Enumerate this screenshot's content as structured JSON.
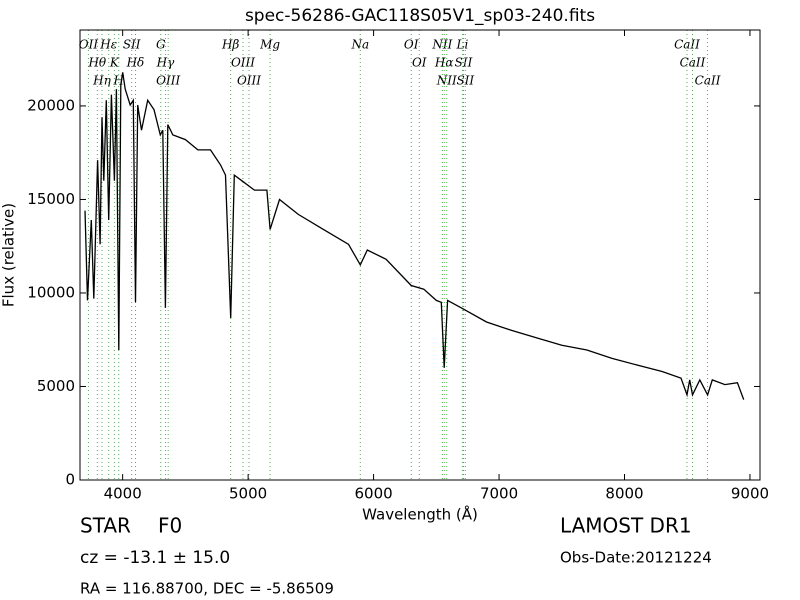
{
  "chart_data": {
    "type": "line",
    "title": "spec-56286-GAC118S05V1_sp03-240.fits",
    "x_label": "Wavelength (Å)",
    "y_label": "Flux (relative)",
    "xlim": [
      3660,
      9080
    ],
    "ylim": [
      0,
      24060
    ],
    "xticks": [
      4000,
      5000,
      6000,
      7000,
      8000,
      9000
    ],
    "yticks": [
      0,
      5000,
      10000,
      15000,
      20000
    ],
    "color": "#000000",
    "line_color": "#4daf4a",
    "x": [
      3700,
      3720,
      3750,
      3770,
      3800,
      3820,
      3835,
      3850,
      3870,
      3889,
      3910,
      3934,
      3950,
      3969,
      3985,
      4000,
      4020,
      4060,
      4085,
      4102,
      4120,
      4150,
      4200,
      4250,
      4300,
      4320,
      4341,
      4360,
      4400,
      4500,
      4600,
      4700,
      4780,
      4820,
      4861,
      4890,
      4950,
      5050,
      5150,
      5175,
      5250,
      5400,
      5600,
      5800,
      5894,
      5950,
      6100,
      6300,
      6400,
      6500,
      6540,
      6563,
      6590,
      6700,
      6900,
      7100,
      7300,
      7500,
      7700,
      7900,
      8100,
      8300,
      8450,
      8498,
      8520,
      8542,
      8600,
      8662,
      8700,
      8800,
      8900,
      8950
    ],
    "values": [
      14400,
      9600,
      13900,
      9700,
      17100,
      12600,
      19400,
      16000,
      20300,
      13900,
      20600,
      16000,
      20900,
      6950,
      21100,
      21800,
      20900,
      20050,
      20300,
      9500,
      20050,
      18700,
      20300,
      19800,
      18450,
      18700,
      9200,
      19000,
      18450,
      18200,
      17650,
      17650,
      16850,
      16300,
      8660,
      16300,
      16000,
      15500,
      15500,
      13400,
      15000,
      14200,
      13400,
      12600,
      11500,
      12300,
      11800,
      10400,
      10200,
      9600,
      9500,
      6000,
      9600,
      9200,
      8450,
      8000,
      7600,
      7200,
      6950,
      6500,
      6150,
      5800,
      5450,
      4550,
      5350,
      4550,
      5350,
      4550,
      5350,
      5100,
      5200,
      4300
    ],
    "lines": [
      {
        "label": "OII",
        "wavelength": 3727
      },
      {
        "label": "Hθ",
        "wavelength": 3798
      },
      {
        "label": "Hη",
        "wavelength": 3835
      },
      {
        "label": "Hε",
        "wavelength": 3889
      },
      {
        "label": "K",
        "wavelength": 3934
      },
      {
        "label": "H",
        "wavelength": 3969
      },
      {
        "label": "SII",
        "wavelength": 4072
      },
      {
        "label": "Hδ",
        "wavelength": 4102
      },
      {
        "label": "G",
        "wavelength": 4304
      },
      {
        "label": "Hγ",
        "wavelength": 4341
      },
      {
        "label": "OIII",
        "wavelength": 4363
      },
      {
        "label": "Hβ",
        "wavelength": 4861
      },
      {
        "label": "OIII",
        "wavelength": 4959
      },
      {
        "label": "OIII",
        "wavelength": 5007
      },
      {
        "label": "Mg",
        "wavelength": 5175
      },
      {
        "label": "Na",
        "wavelength": 5894
      },
      {
        "label": "OI",
        "wavelength": 6300
      },
      {
        "label": "OI",
        "wavelength": 6364
      },
      {
        "label": "NII",
        "wavelength": 6548
      },
      {
        "label": "Hα",
        "wavelength": 6563
      },
      {
        "label": "NII",
        "wavelength": 6583
      },
      {
        "label": "SII",
        "wavelength": 6717
      },
      {
        "label": "Li",
        "wavelength": 6708
      },
      {
        "label": "SII",
        "wavelength": 6731
      },
      {
        "label": "CaII",
        "wavelength": 8498
      },
      {
        "label": "CaII",
        "wavelength": 8542
      },
      {
        "label": "CaII",
        "wavelength": 8662
      }
    ],
    "object_class": "STAR",
    "subclass": "F0",
    "redshift": "cz = -13.1 ± 15.0",
    "survey": "LAMOST DR1",
    "obs_date": "Obs-Date:20121224",
    "coordinates": "RA = 116.88700, DEC = -5.86509"
  }
}
